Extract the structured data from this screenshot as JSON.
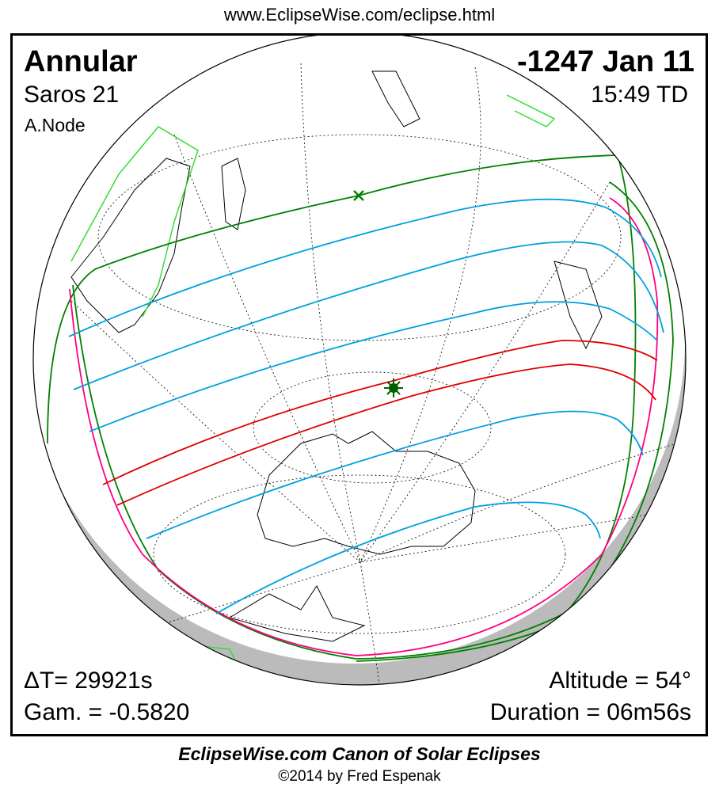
{
  "header": {
    "url": "www.EclipseWise.com/eclipse.html"
  },
  "eclipse": {
    "type": "Annular",
    "date": "-1247 Jan 11",
    "saros": "Saros  21",
    "time": "15:49 TD",
    "node": "A.Node",
    "delta_t": "ΔT=  29921s",
    "gamma": "Gam. = -0.5820",
    "altitude": "Altitude = 54°",
    "duration": "Duration = 06m56s"
  },
  "colors": {
    "central_path": "#e00000",
    "magnitude_lines": "#00a0e0",
    "penumbral_limits": "#008000",
    "rise_set_curve": "#ff0080",
    "land_lit": "#000000",
    "land_edge": "#33dd33",
    "night": "#bbbbbb"
  },
  "footer": {
    "title": "EclipseWise.com Canon of Solar Eclipses",
    "copyright": "©2014 by Fred Espenak"
  }
}
